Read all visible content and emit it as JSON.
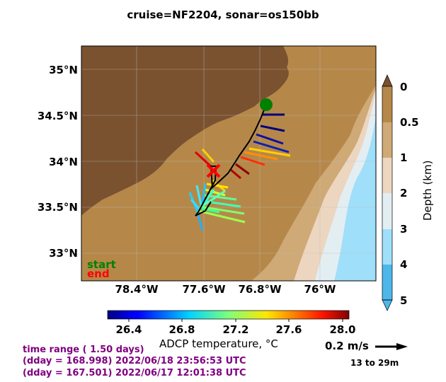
{
  "title": "cruise=NF2204,   sonar=os150bb",
  "map": {
    "lat_ticks": [
      "35°N",
      "34.5°N",
      "34°N",
      "33.5°N",
      "33°N"
    ],
    "lon_ticks": [
      "78.4°W",
      "77.6°W",
      "76.8°W",
      "76°W"
    ],
    "legend": {
      "start": "start",
      "end": "end",
      "start_color": "#008000",
      "end_color": "#ff0000"
    },
    "land_color": "#7a5230"
  },
  "colorbar": {
    "label": "ADCP temperature, °C",
    "ticks": [
      "26.4",
      "26.8",
      "27.2",
      "27.6",
      "28.0"
    ],
    "colormap": "jet"
  },
  "depth_bar": {
    "label": "Depth (km)",
    "ticks": [
      "0",
      "0.5",
      "1",
      "2",
      "3",
      "4",
      "5"
    ],
    "colors": [
      "#b5884a",
      "#cfa976",
      "#ecd6c0",
      "#e3eef3",
      "#9fdff9",
      "#4db7e9"
    ]
  },
  "scale": {
    "label": "0.2 m/s",
    "depth_range": "13 to 29m"
  },
  "info": {
    "range": "time range ( 1.50 days)",
    "end": "(dday = 168.998) 2022/06/18 23:56:53 UTC",
    "start": "(dday = 167.501) 2022/06/17 12:01:38 UTC",
    "color": "#800080"
  }
}
